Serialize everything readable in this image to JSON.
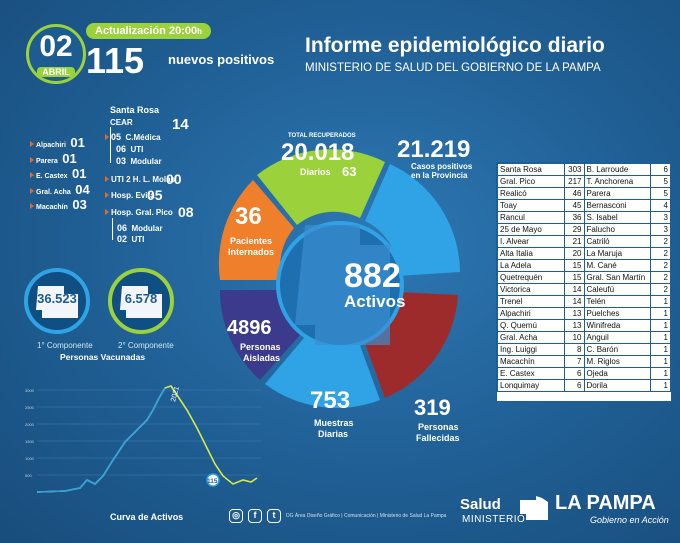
{
  "header": {
    "day": "02",
    "month": "ABRIL",
    "update_label": "Actualización 20:00",
    "update_suffix": "h",
    "new_positives_count": "115",
    "new_positives_label": "nuevos positivos",
    "title": "Informe epidemiológico diario",
    "subtitle": "MINISTERIO DE SALUD DEL GOBIERNO DE LA PAMPA"
  },
  "hospitals": {
    "santa_rosa": "Santa Rosa",
    "cear": "CEAR",
    "cear_count": "14",
    "cear_rows": [
      {
        "n": "05",
        "label": "C.Médica"
      },
      {
        "n": "06",
        "label": "UTI"
      },
      {
        "n": "03",
        "label": "Modular"
      }
    ],
    "uti_molas": "UTI 2 H. L. Molas",
    "uti_molas_count": "00",
    "evita": "Hosp. Evita",
    "evita_count": "05",
    "pico": "Hosp. Gral. Pico",
    "pico_count": "08",
    "pico_rows": [
      {
        "n": "06",
        "label": "Modular"
      },
      {
        "n": "02",
        "label": "UTI"
      }
    ],
    "localities": [
      {
        "name": "Alpachiri",
        "n": "01"
      },
      {
        "name": "Parera",
        "n": "01"
      },
      {
        "name": "E. Castex",
        "n": "01"
      },
      {
        "name": "Gral. Acha",
        "n": "04"
      },
      {
        "name": "Macachín",
        "n": "03"
      }
    ]
  },
  "vaccines": {
    "first": "36.523",
    "first_label": "1° Componente",
    "second": "6.578",
    "second_label": "2° Componente",
    "caption": "Personas Vacunadas"
  },
  "wheel": {
    "center_number": "882",
    "center_label": "Activos",
    "recovered_label": "TOTAL RECUPERADOS",
    "recovered": "20.018",
    "daily_label": "Diarios",
    "daily": "63",
    "positives": "21.219",
    "positives_label": "Casos positivos",
    "positives_label2": "en la Provincia",
    "internados": "36",
    "internados_label": "Pacientes",
    "internados_label2": "Internados",
    "aisladas": "4896",
    "aisladas_label": "Personas",
    "aisladas_label2": "Aisladas",
    "muestras": "753",
    "muestras_label": "Muestras",
    "muestras_label2": "Diarias",
    "fallecidas": "319",
    "fallecidas_label": "Personas",
    "fallecidas_label2": "Fallecidas",
    "colors": {
      "green": "#9bd13a",
      "blue": "#2fa3e6",
      "orange": "#f07f2b",
      "purple": "#3b3a8d",
      "lightblue": "#2fa3e6",
      "red": "#9e2b2b",
      "center": "#1d6fb0"
    }
  },
  "curve": {
    "label": "Curva de Activos",
    "peak_label": "2021",
    "end_value": "115",
    "y_ticks": [
      "3000",
      "2500",
      "2000",
      "1500",
      "1000",
      "500"
    ]
  },
  "table": {
    "rows": [
      [
        "Santa Rosa",
        "303",
        "B. Larroude",
        "6"
      ],
      [
        "Gral. Pico",
        "217",
        "T. Anchorena",
        "5"
      ],
      [
        "Realicó",
        "46",
        "Parera",
        "5"
      ],
      [
        "Toay",
        "45",
        "Bernasconi",
        "4"
      ],
      [
        "Rancul",
        "36",
        "S. Isabel",
        "3"
      ],
      [
        "25 de Mayo",
        "29",
        "Falucho",
        "3"
      ],
      [
        "I. Alvear",
        "21",
        "Catriló",
        "2"
      ],
      [
        "Alta Italia",
        "20",
        "La Maruja",
        "2"
      ],
      [
        "La Adela",
        "15",
        "M. Cané",
        "2"
      ],
      [
        "Quetrequén",
        "15",
        "Gral. San Martín",
        "2"
      ],
      [
        "Victorica",
        "14",
        "Caleufú",
        "2"
      ],
      [
        "Trenel",
        "14",
        "Telén",
        "1"
      ],
      [
        "Alpachiri",
        "13",
        "Puelches",
        "1"
      ],
      [
        "Q. Quemú",
        "13",
        "Winifreda",
        "1"
      ],
      [
        "Gral. Acha",
        "10",
        "Anguil",
        "1"
      ],
      [
        "Ing. Luiggi",
        "8",
        "C. Barón",
        "1"
      ],
      [
        "Macachín",
        "7",
        "M. Riglos",
        "1"
      ],
      [
        "E. Castex",
        "6",
        "Ojeda",
        "1"
      ],
      [
        "Lonquimay",
        "6",
        "Dorila",
        "1"
      ]
    ]
  },
  "footer": {
    "credit": "DG Área Diseño Gráfico | Comunicación | Ministerio de Salud La Pampa",
    "salud": "Salud",
    "ministerio": "MINISTERIO",
    "la_pampa": "LA PAMPA",
    "gobierno": "Gobierno en Acción",
    "social_icons": [
      "instagram-icon",
      "facebook-icon",
      "twitter-icon"
    ]
  }
}
